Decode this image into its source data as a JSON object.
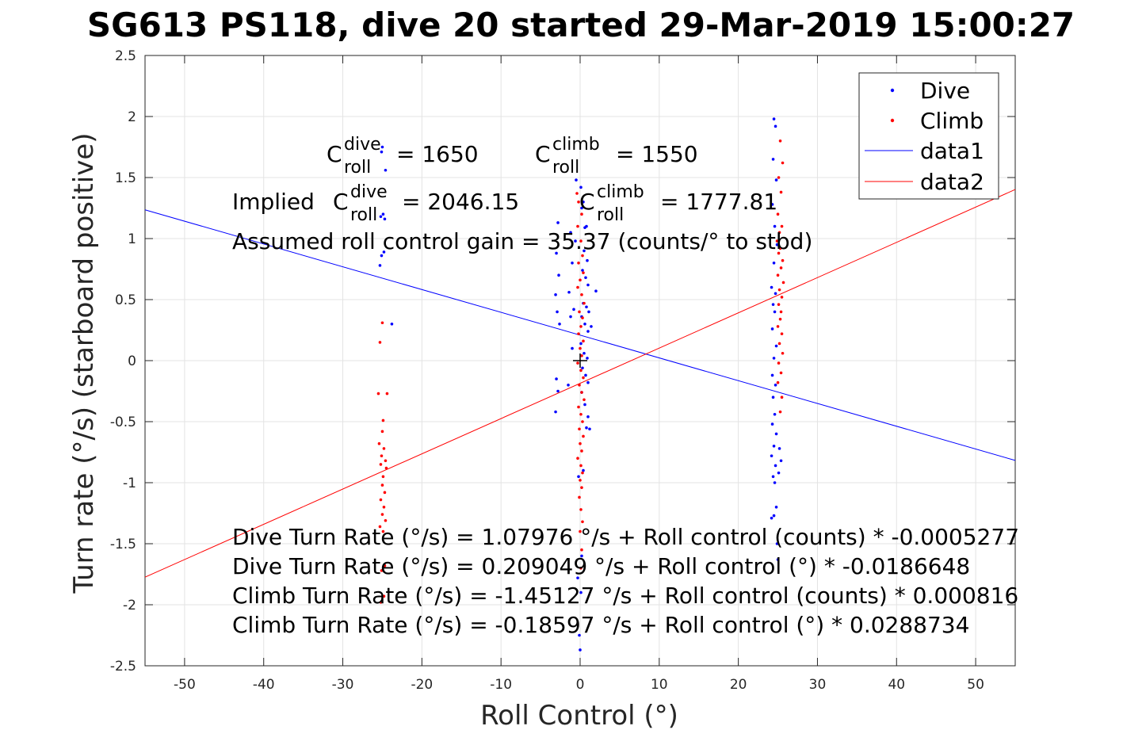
{
  "chart_data": {
    "type": "scatter",
    "title": "SG613 PS118, dive 20 started 29-Mar-2019 15:00:27",
    "xlabel": "Roll Control (°)",
    "ylabel": "Turn rate (°/s) (starboard positive)",
    "xlim": [
      -55,
      55
    ],
    "ylim": [
      -2.5,
      2.5
    ],
    "xticks": [
      -50,
      -40,
      -30,
      -20,
      -10,
      0,
      10,
      20,
      30,
      40,
      50
    ],
    "xtick_labels": [
      "-50",
      "-40",
      "-30",
      "-20",
      "-10",
      "0",
      "10",
      "20",
      "30",
      "40",
      "50"
    ],
    "yticks": [
      -2.5,
      -2,
      -1.5,
      -1,
      -0.5,
      0,
      0.5,
      1,
      1.5,
      2,
      2.5
    ],
    "ytick_labels": [
      "-2.5",
      "-2",
      "-1.5",
      "-1",
      "-0.5",
      "0",
      "0.5",
      "1",
      "1.5",
      "2",
      "2.5"
    ],
    "grid": true,
    "legend_position": "top-right",
    "colors": {
      "dive": "#0000ff",
      "climb": "#ff0000",
      "marker": "#000000"
    },
    "series": [
      {
        "name": "Dive",
        "kind": "points",
        "color": "#0000ff",
        "points": [
          [
            -25,
            1.75
          ],
          [
            -25.1,
            1.71
          ],
          [
            -24.6,
            1.56
          ],
          [
            -24.9,
            1.2
          ],
          [
            -25.2,
            1.18
          ],
          [
            -24.7,
            1.16
          ],
          [
            -24.8,
            0.89
          ],
          [
            -25.1,
            0.86
          ],
          [
            -25.3,
            0.78
          ],
          [
            -23.8,
            0.3
          ],
          [
            -2.8,
            1.13
          ],
          [
            -3,
            0.88
          ],
          [
            -2.7,
            0.7
          ],
          [
            -3.1,
            0.54
          ],
          [
            -2.9,
            0.4
          ],
          [
            -2.6,
            0.3
          ],
          [
            -3,
            -0.15
          ],
          [
            -2.8,
            -0.25
          ],
          [
            -3.1,
            -0.42
          ],
          [
            -1.2,
            1.05
          ],
          [
            -1,
            0.8
          ],
          [
            -1.4,
            0.56
          ],
          [
            -0.8,
            0.42
          ],
          [
            -1.2,
            0.36
          ],
          [
            -1,
            0.1
          ],
          [
            -1.5,
            -0.2
          ],
          [
            -0.5,
            1.48
          ],
          [
            -0.6,
            0.98
          ],
          [
            0.1,
            1.42
          ],
          [
            0.2,
            1.25
          ],
          [
            0.4,
            1.3
          ],
          [
            0.6,
            1.09
          ],
          [
            0.8,
            1.1
          ],
          [
            0.5,
            0.9
          ],
          [
            0.9,
            0.82
          ],
          [
            0.3,
            0.74
          ],
          [
            0.7,
            0.68
          ],
          [
            1,
            0.62
          ],
          [
            0.4,
            0.47
          ],
          [
            0.8,
            0.44
          ],
          [
            1.1,
            0.4
          ],
          [
            0.2,
            0.36
          ],
          [
            0.6,
            0.3
          ],
          [
            1,
            0.24
          ],
          [
            0.1,
            0.14
          ],
          [
            0.5,
            0.06
          ],
          [
            0.9,
            0.02
          ],
          [
            0.3,
            -0.06
          ],
          [
            0.7,
            -0.12
          ],
          [
            1,
            -0.18
          ],
          [
            0.2,
            -0.26
          ],
          [
            0.6,
            -0.36
          ],
          [
            1,
            -0.46
          ],
          [
            0.8,
            -0.55
          ],
          [
            1.2,
            -0.56
          ],
          [
            0.4,
            -0.9
          ],
          [
            -0.2,
            -0.95
          ],
          [
            0.2,
            -1.6
          ],
          [
            -0.3,
            -1.78
          ],
          [
            0.1,
            -1.9
          ],
          [
            -0.1,
            -2.25
          ],
          [
            0,
            -2.37
          ],
          [
            2,
            0.57
          ],
          [
            1.4,
            0.28
          ],
          [
            24.5,
            1.98
          ],
          [
            24.7,
            1.92
          ],
          [
            24.4,
            1.65
          ],
          [
            24.8,
            1.48
          ],
          [
            24.3,
            1.28
          ],
          [
            24.6,
            1.1
          ],
          [
            24.9,
            0.95
          ],
          [
            24.5,
            0.8
          ],
          [
            24.2,
            0.6
          ],
          [
            24.7,
            0.55
          ],
          [
            24.4,
            0.46
          ],
          [
            24.6,
            0.4
          ],
          [
            24.3,
            0.26
          ],
          [
            24.8,
            0.12
          ],
          [
            24.5,
            0.02
          ],
          [
            24.3,
            -0.12
          ],
          [
            24.7,
            -0.2
          ],
          [
            24.4,
            -0.3
          ],
          [
            24.6,
            -0.44
          ],
          [
            24.3,
            -0.52
          ],
          [
            24.8,
            -0.6
          ],
          [
            24.5,
            -0.7
          ],
          [
            24.2,
            -0.78
          ],
          [
            24.7,
            -0.86
          ],
          [
            24.4,
            -0.95
          ],
          [
            24.6,
            -1
          ],
          [
            25.2,
            -0.72
          ],
          [
            25.4,
            -0.82
          ],
          [
            25.1,
            -0.92
          ],
          [
            24.8,
            -1.2
          ],
          [
            24.5,
            -1.27
          ],
          [
            24.2,
            -1.29
          ],
          [
            24.9,
            -1.5
          ],
          [
            25,
            -1.63
          ]
        ]
      },
      {
        "name": "Climb",
        "kind": "points",
        "color": "#ff0000",
        "points": [
          [
            -25,
            0.31
          ],
          [
            -25.3,
            0.15
          ],
          [
            -25.5,
            -0.27
          ],
          [
            -24.4,
            -0.27
          ],
          [
            -24.9,
            -0.49
          ],
          [
            -25,
            -0.58
          ],
          [
            -25.4,
            -0.68
          ],
          [
            -24.8,
            -0.72
          ],
          [
            -25.1,
            -0.78
          ],
          [
            -24.6,
            -0.82
          ],
          [
            -25.2,
            -0.85
          ],
          [
            -24.5,
            -0.88
          ],
          [
            -24.9,
            -0.95
          ],
          [
            -25,
            -1.02
          ],
          [
            -24.7,
            -1.08
          ],
          [
            -25.2,
            -1.14
          ],
          [
            -24.8,
            -1.2
          ],
          [
            -25,
            -1.26
          ],
          [
            -24.6,
            -1.31
          ],
          [
            -25.3,
            -1.36
          ],
          [
            -24.9,
            -1.4
          ],
          [
            -24.7,
            -1.68
          ],
          [
            -25.1,
            -1.72
          ],
          [
            -24.8,
            -1.93
          ],
          [
            -25.2,
            -1.98
          ],
          [
            -0.4,
            1.37
          ],
          [
            -0.2,
            1.3
          ],
          [
            0.2,
            1.2
          ],
          [
            -0.3,
            1.1
          ],
          [
            0.1,
            0.98
          ],
          [
            0.3,
            0.86
          ],
          [
            -0.2,
            0.8
          ],
          [
            0.4,
            0.72
          ],
          [
            0,
            0.66
          ],
          [
            -0.3,
            0.6
          ],
          [
            0.2,
            0.54
          ],
          [
            0.5,
            0.47
          ],
          [
            -0.1,
            0.4
          ],
          [
            0.3,
            0.35
          ],
          [
            0.1,
            0.28
          ],
          [
            -0.2,
            0.22
          ],
          [
            0.4,
            0.16
          ],
          [
            0,
            0.1
          ],
          [
            0.2,
            0.04
          ],
          [
            -0.3,
            -0.02
          ],
          [
            0.1,
            -0.08
          ],
          [
            0.4,
            -0.14
          ],
          [
            -0.1,
            -0.2
          ],
          [
            0.2,
            -0.26
          ],
          [
            0.5,
            -0.32
          ],
          [
            -0.2,
            -0.38
          ],
          [
            0.1,
            -0.44
          ],
          [
            0.3,
            -0.5
          ],
          [
            -0.1,
            -0.56
          ],
          [
            0.4,
            -0.62
          ],
          [
            0,
            -0.68
          ],
          [
            0.2,
            -0.74
          ],
          [
            -0.3,
            -0.8
          ],
          [
            0.1,
            -0.86
          ],
          [
            0.3,
            -0.92
          ],
          [
            0,
            -0.98
          ],
          [
            0.2,
            -1.04
          ],
          [
            -0.1,
            -1.12
          ],
          [
            0.1,
            -1.22
          ],
          [
            0.3,
            -1.32
          ],
          [
            0,
            -1.4
          ],
          [
            0.2,
            -1.55
          ],
          [
            0.1,
            -1.7
          ],
          [
            25.3,
            1.8
          ],
          [
            25.6,
            1.62
          ],
          [
            25.1,
            1.5
          ],
          [
            25.4,
            1.38
          ],
          [
            25,
            1.2
          ],
          [
            25.5,
            1.1
          ],
          [
            25.2,
            1.05
          ],
          [
            24.9,
            0.98
          ],
          [
            25.3,
            0.92
          ],
          [
            25.1,
            0.88
          ],
          [
            25.6,
            0.82
          ],
          [
            25.4,
            0.76
          ],
          [
            25,
            0.7
          ],
          [
            25.7,
            0.64
          ],
          [
            25.2,
            0.58
          ],
          [
            25.5,
            0.52
          ],
          [
            25.1,
            0.46
          ],
          [
            25.4,
            0.4
          ],
          [
            25.3,
            0.34
          ],
          [
            25,
            0.28
          ],
          [
            25.5,
            0.22
          ],
          [
            25.2,
            0.14
          ],
          [
            25.6,
            0.06
          ],
          [
            25.1,
            -0.02
          ],
          [
            25.4,
            -0.1
          ],
          [
            25,
            -0.18
          ],
          [
            25.5,
            -0.3
          ],
          [
            25.3,
            -0.42
          ]
        ]
      },
      {
        "name": "data1",
        "kind": "line",
        "color": "#0000ff",
        "x": [
          -55,
          55
        ],
        "y": [
          1.23561,
          -0.81751
        ]
      },
      {
        "name": "data2",
        "kind": "line",
        "color": "#ff0000",
        "x": [
          -55,
          55
        ],
        "y": [
          -1.774,
          1.40204
        ]
      }
    ],
    "center_marker": {
      "x": 0,
      "y": 0,
      "shape": "plus",
      "color": "#000000"
    },
    "annotations": {
      "c_dive": {
        "base": "C",
        "sup": "dive",
        "sub": "roll",
        "value": "= 1650"
      },
      "c_climb": {
        "base": "C",
        "sup": "climb",
        "sub": "roll",
        "value": "= 1550"
      },
      "implied_prefix": "Implied",
      "implied_dive": {
        "base": "C",
        "sup": "dive",
        "sub": "roll",
        "value": "= 2046.15"
      },
      "implied_climb": {
        "base": "C",
        "sup": "climb",
        "sub": "roll",
        "value": "= 1777.81"
      },
      "gain": "Assumed roll control gain = 35.37 (counts/° to stbd)",
      "eq1": "Dive Turn Rate (°/s) = 1.07976 °/s + Roll control (counts) * -0.0005277",
      "eq2": "Dive Turn Rate (°/s) = 0.209049 °/s + Roll control (°) * -0.0186648",
      "eq3": "Climb Turn Rate (°/s) = -1.45127 °/s + Roll control (counts) * 0.000816",
      "eq4": "Climb Turn Rate (°/s) = -0.18597 °/s + Roll control (°) * 0.0288734"
    },
    "legend": [
      {
        "label": "Dive",
        "style": "dot",
        "color": "#0000ff"
      },
      {
        "label": "Climb",
        "style": "dot",
        "color": "#ff0000"
      },
      {
        "label": "data1",
        "style": "line",
        "color": "#0000ff"
      },
      {
        "label": "data2",
        "style": "line",
        "color": "#ff0000"
      }
    ]
  }
}
